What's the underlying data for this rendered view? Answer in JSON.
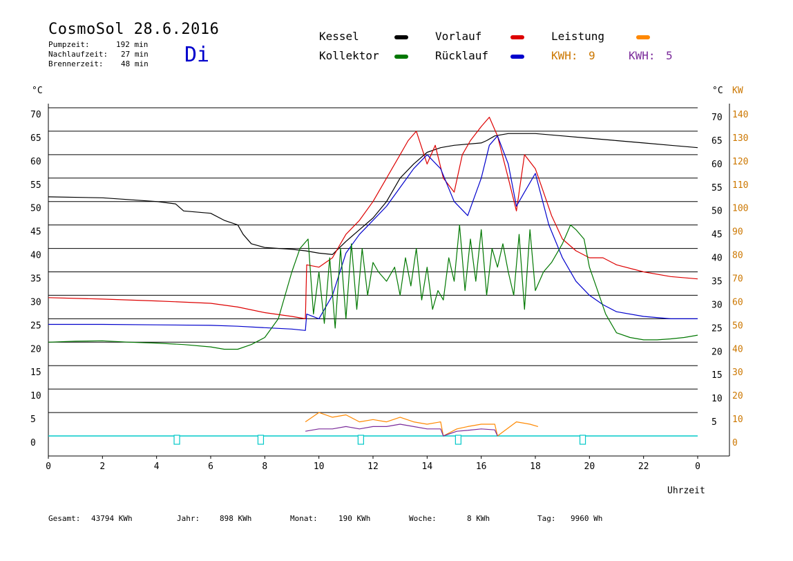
{
  "header": {
    "title": "CosmoSol 28.6.2016",
    "weekday": "Di",
    "stats": [
      {
        "label": "Pumpzeit:",
        "value": "192 min"
      },
      {
        "label": "Nachlaufzeit:",
        "value": "27 min"
      },
      {
        "label": "Brennerzeit:",
        "value": "48 min"
      }
    ]
  },
  "legend": {
    "kessel": {
      "label": "Kessel",
      "color": "#000000"
    },
    "vorlauf": {
      "label": "Vorlauf",
      "color": "#dd0000"
    },
    "leistung": {
      "label": "Leistung",
      "color": "#ff8800"
    },
    "kollektor": {
      "label": "Kollektor",
      "color": "#007700"
    },
    "ruecklauf": {
      "label": "Rücklauf",
      "color": "#0000cc"
    },
    "kwh1": {
      "label": "KWH:",
      "value": "9",
      "color": "#cc7700"
    },
    "kwh2": {
      "label": "KWH:",
      "value": "5",
      "color": "#7a2a9a"
    }
  },
  "footer": [
    {
      "label": "Gesamt:",
      "value": "43794 KWh"
    },
    {
      "label": "Jahr:",
      "value": "898 KWh"
    },
    {
      "label": "Monat:",
      "value": "190 KWh"
    },
    {
      "label": "Woche:",
      "value": "8 KWh"
    },
    {
      "label": "Tag:",
      "value": "9960 Wh"
    }
  ],
  "chart_data": {
    "type": "line",
    "xlabel": "Uhrzeit",
    "left_unit": "°C",
    "right_unit": "°C",
    "right_kw_unit": "KW",
    "xlim": [
      0,
      24
    ],
    "ylim": [
      0,
      70
    ],
    "kw_lim": [
      0,
      140
    ],
    "grid": true,
    "x_ticks": [
      "0",
      "2",
      "4",
      "6",
      "8",
      "10",
      "12",
      "14",
      "16",
      "18",
      "20",
      "22",
      "0"
    ],
    "y_ticks": [
      0,
      5,
      10,
      15,
      20,
      25,
      30,
      35,
      40,
      45,
      50,
      55,
      60,
      65,
      70
    ],
    "kw_ticks": [
      0,
      10,
      20,
      30,
      40,
      50,
      60,
      70,
      80,
      90,
      100,
      110,
      120,
      130,
      140
    ],
    "series": [
      {
        "name": "Kessel",
        "color": "#000000",
        "x": [
          0,
          2,
          4,
          4.7,
          5,
          6,
          6.5,
          7,
          7.2,
          7.5,
          8,
          9,
          9.5,
          10,
          10.5,
          11,
          11.5,
          12,
          12.5,
          13,
          13.5,
          14,
          14.5,
          15,
          16,
          16.2,
          16.5,
          17,
          18,
          19,
          20,
          21,
          22,
          23,
          24
        ],
        "y": [
          51,
          50.8,
          50,
          49.5,
          48,
          47.5,
          46,
          45,
          43,
          41,
          40.2,
          39.8,
          39.5,
          39,
          38.7,
          41.5,
          44,
          46.5,
          50,
          55,
          58,
          60.5,
          61.5,
          62,
          62.5,
          63,
          64,
          64.5,
          64.5,
          64,
          63.5,
          63,
          62.5,
          62,
          61.5
        ]
      },
      {
        "name": "Vorlauf",
        "color": "#dd0000",
        "x": [
          0,
          2,
          4,
          6,
          7,
          8,
          9,
          9.5,
          9.55,
          10,
          10.5,
          11,
          11.5,
          12,
          12.5,
          13,
          13.3,
          13.6,
          14,
          14.3,
          14.6,
          15,
          15.3,
          15.6,
          16,
          16.3,
          16.6,
          17,
          17.3,
          17.6,
          18,
          18.3,
          18.6,
          19,
          19.5,
          20,
          20.5,
          21,
          22,
          23,
          24
        ],
        "y": [
          29.5,
          29.2,
          28.8,
          28.3,
          27.5,
          26.3,
          25.5,
          25,
          36.5,
          36,
          38,
          43,
          46,
          50,
          55,
          60,
          63,
          65,
          58,
          62,
          55,
          52,
          60,
          63,
          66,
          68,
          64,
          55,
          48,
          60,
          57,
          52,
          47,
          42,
          39.5,
          38,
          38,
          36.5,
          35,
          34,
          33.5
        ]
      },
      {
        "name": "Rücklauf",
        "color": "#0000cc",
        "x": [
          0,
          2,
          4,
          6,
          7,
          8,
          9,
          9.5,
          9.55,
          10,
          10.5,
          11,
          11.5,
          12,
          12.5,
          13,
          13.5,
          14,
          14.5,
          15,
          15.5,
          16,
          16.3,
          16.6,
          17,
          17.3,
          17.6,
          18,
          18.5,
          19,
          19.5,
          20,
          20.5,
          21,
          22,
          23,
          24
        ],
        "y": [
          23.8,
          23.8,
          23.7,
          23.6,
          23.4,
          23.1,
          22.8,
          22.5,
          26,
          25,
          30,
          39,
          43,
          46,
          49,
          53,
          57,
          60,
          57,
          50,
          47,
          55,
          62,
          64,
          58,
          49,
          52,
          56,
          45,
          38,
          33,
          30,
          28,
          26.5,
          25.5,
          25,
          25
        ]
      },
      {
        "name": "Kollektor",
        "color": "#007700",
        "x": [
          0,
          1,
          2,
          3,
          4,
          5,
          6,
          6.5,
          7,
          7.5,
          8,
          8.5,
          9,
          9.3,
          9.6,
          9.8,
          10,
          10.2,
          10.4,
          10.6,
          10.8,
          11,
          11.2,
          11.4,
          11.6,
          11.8,
          12,
          12.2,
          12.5,
          12.8,
          13,
          13.2,
          13.4,
          13.6,
          13.8,
          14,
          14.2,
          14.4,
          14.6,
          14.8,
          15,
          15.2,
          15.4,
          15.6,
          15.8,
          16,
          16.2,
          16.4,
          16.6,
          16.8,
          17,
          17.2,
          17.4,
          17.6,
          17.8,
          18,
          18.3,
          18.6,
          19,
          19.3,
          19.5,
          19.8,
          20,
          20.3,
          20.6,
          21,
          21.5,
          22,
          22.5,
          23,
          23.5,
          24
        ],
        "y": [
          20,
          20.2,
          20.3,
          20,
          19.8,
          19.5,
          19,
          18.5,
          18.5,
          19.5,
          21,
          25,
          35,
          40,
          42,
          26,
          35,
          24,
          38,
          23,
          40,
          25,
          41,
          27,
          40,
          30,
          37,
          35,
          33,
          36,
          30,
          38,
          32,
          40,
          29,
          36,
          27,
          31,
          29,
          38,
          33,
          45,
          31,
          42,
          33,
          44,
          30,
          40,
          36,
          41,
          35,
          30,
          43,
          27,
          44,
          31,
          35,
          37,
          41,
          45,
          44,
          42,
          36,
          31,
          26,
          22,
          21,
          20.5,
          20.5,
          20.7,
          21,
          21.5
        ]
      },
      {
        "name": "Leistung",
        "color": "#ff8800",
        "x": [
          9.5,
          10,
          10.5,
          11,
          11.5,
          12,
          12.5,
          13,
          13.5,
          14,
          14.5,
          14.6,
          15.1,
          15.5,
          16,
          16.5,
          16.6,
          17.3,
          17.8,
          18.1
        ],
        "y": [
          3,
          5,
          4,
          4.5,
          3,
          3.5,
          3,
          4,
          3,
          2.5,
          3,
          0,
          1.5,
          2,
          2.5,
          2.5,
          0,
          3,
          2.5,
          2
        ]
      },
      {
        "name": "KWH 5",
        "color": "#7a2a9a",
        "x": [
          9.5,
          10,
          10.5,
          11,
          11.5,
          12,
          12.5,
          13,
          13.5,
          14,
          14.5,
          14.6,
          15.1,
          15.5,
          16,
          16.5,
          16.6
        ],
        "y": [
          1,
          1.5,
          1.5,
          2,
          1.5,
          2,
          2,
          2.5,
          2,
          1.5,
          1.5,
          0,
          1,
          1.2,
          1.5,
          1.3,
          0
        ]
      }
    ],
    "markers": [
      {
        "color": "#00c8c8",
        "x": [
          4.75,
          7.85,
          11.55,
          15.15,
          19.75
        ]
      }
    ]
  }
}
